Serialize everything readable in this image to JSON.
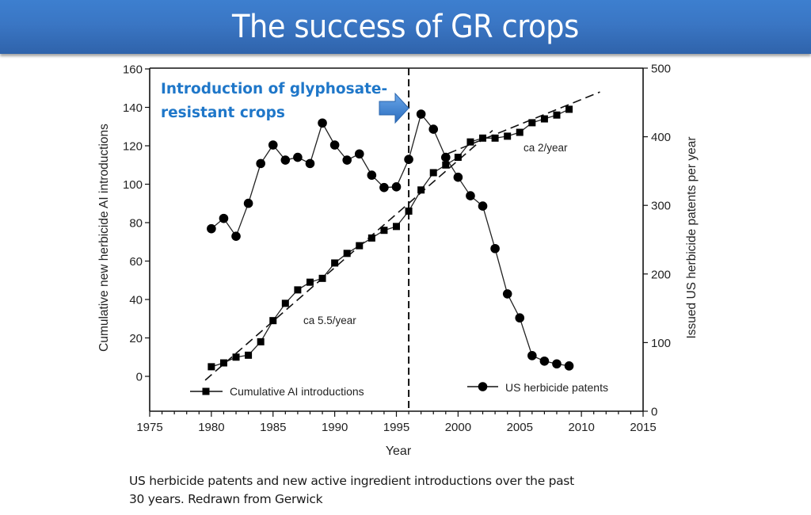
{
  "slide": {
    "title": "The success of GR crops",
    "caption_line1": "US herbicide patents and new active ingredient introductions over the past",
    "caption_line2": "30 years. Redrawn from Gerwick",
    "annotation_line1": "Introduction of glyphosate-",
    "annotation_line2": "resistant crops",
    "colors": {
      "title_bar": "#3a76c4",
      "annotation": "#1f77c9",
      "arrow": "#3f86d6"
    }
  },
  "chart_data": {
    "type": "line",
    "title": "",
    "xlabel": "Year",
    "ylabel": "Cumulative new herbicide AI introductions",
    "y2label": "Issued US herbicide patents per year",
    "xlim": [
      1975,
      2015
    ],
    "ylim": [
      -18,
      160
    ],
    "y2lim": [
      0,
      500
    ],
    "x_ticks": [
      "1975",
      "1980",
      "1985",
      "1990",
      "1995",
      "2000",
      "2005",
      "2010",
      "2015"
    ],
    "y_ticks": [
      "0",
      "20",
      "40",
      "60",
      "80",
      "100",
      "120",
      "140",
      "160"
    ],
    "y2_ticks": [
      "0",
      "100",
      "200",
      "300",
      "400",
      "500"
    ],
    "grid": false,
    "x": [
      1980,
      1981,
      1982,
      1983,
      1984,
      1985,
      1986,
      1987,
      1988,
      1989,
      1990,
      1991,
      1992,
      1993,
      1994,
      1995,
      1996,
      1997,
      1998,
      1999,
      2000,
      2001,
      2002,
      2003,
      2004,
      2005,
      2006,
      2007,
      2008,
      2009
    ],
    "series": [
      {
        "name": "Cumulative AI introductions",
        "axis": "left",
        "marker": "square",
        "values": [
          5,
          7,
          10,
          11,
          18,
          29,
          38,
          45,
          49,
          51,
          59,
          64,
          68,
          72,
          76,
          78,
          86,
          97,
          106,
          110,
          114,
          122,
          124,
          124,
          125,
          127,
          132,
          134,
          136,
          139
        ]
      },
      {
        "name": "US herbicide patents",
        "axis": "right",
        "marker": "circle",
        "values": [
          266,
          281,
          255,
          303,
          361,
          388,
          366,
          370,
          361,
          420,
          388,
          366,
          375,
          344,
          326,
          327,
          367,
          433,
          411,
          370,
          341,
          314,
          299,
          237,
          171,
          136,
          81,
          73,
          69,
          66
        ]
      }
    ],
    "trend_lines": [
      {
        "label": "ca 5.5/year",
        "from": [
          1979.5,
          -2
        ],
        "to": [
          2002.8,
          128
        ]
      },
      {
        "label": "ca 2/year",
        "from": [
          1999.2,
          116
        ],
        "to": [
          2011.5,
          148
        ]
      }
    ],
    "vertical_marker": {
      "x": 1996,
      "style": "dashed",
      "label": "Introduction of glyphosate-resistant crops"
    },
    "legend": [
      {
        "label": "Cumulative AI introductions",
        "marker": "square",
        "position": "bottom-left"
      },
      {
        "label": "US herbicide patents",
        "marker": "circle",
        "position": "bottom-right"
      }
    ]
  }
}
